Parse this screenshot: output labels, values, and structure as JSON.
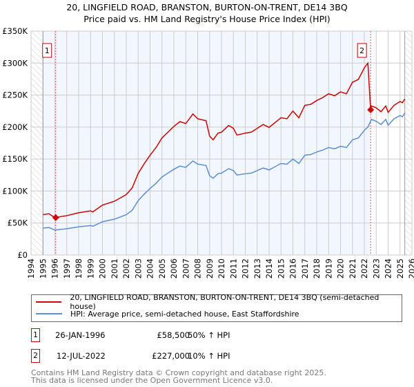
{
  "title": "20, LINGFIELD ROAD, BRANSTON, BURTON-ON-TRENT, DE14 3BQ",
  "subtitle": "Price paid vs. HM Land Registry's House Price Index (HPI)",
  "chart_data": {
    "type": "line",
    "xlim": [
      1994,
      2026
    ],
    "ylim": [
      0,
      350000
    ],
    "x_ticks": [
      "1994",
      "1995",
      "1996",
      "1997",
      "1998",
      "1999",
      "2000",
      "2001",
      "2002",
      "2003",
      "2004",
      "2005",
      "2006",
      "2007",
      "2008",
      "2009",
      "2010",
      "2011",
      "2012",
      "2013",
      "2014",
      "2015",
      "2016",
      "2017",
      "2018",
      "2019",
      "2020",
      "2021",
      "2022",
      "2023",
      "2024",
      "2025",
      "2026"
    ],
    "y_ticks": [
      {
        "v": 0,
        "label": "£0"
      },
      {
        "v": 50000,
        "label": "£50K"
      },
      {
        "v": 100000,
        "label": "£100K"
      },
      {
        "v": 150000,
        "label": "£150K"
      },
      {
        "v": 200000,
        "label": "£200K"
      },
      {
        "v": 250000,
        "label": "£250K"
      },
      {
        "v": 300000,
        "label": "£300K"
      },
      {
        "v": 350000,
        "label": "£350K"
      }
    ],
    "grid": true,
    "shaded_range": [
      1995,
      2022.53
    ],
    "hatched_ranges": [
      [
        1994,
        1995
      ],
      [
        2025.4,
        2026
      ]
    ],
    "series": [
      {
        "name": "20, LINGFIELD ROAD, BRANSTON, BURTON-ON-TRENT, DE14 3BQ (semi-detached house)",
        "color": "#cc0000",
        "x": [
          1995,
          1995.5,
          1996,
          1997,
          1998,
          1999,
          1999.2,
          2000,
          2001,
          2002,
          2002.5,
          2003,
          2003.5,
          2004,
          2004.5,
          2005,
          2005.5,
          2006,
          2006.5,
          2007,
          2007.6,
          2008,
          2008.7,
          2009,
          2009.3,
          2009.7,
          2010,
          2010.6,
          2011,
          2011.3,
          2012,
          2012.5,
          2013,
          2013.5,
          2014,
          2014.5,
          2015,
          2015.5,
          2016,
          2016.5,
          2017,
          2017.5,
          2018,
          2018.5,
          2019,
          2019.5,
          2020,
          2020.5,
          2021,
          2021.5,
          2022,
          2022.3,
          2022.53,
          2022.6,
          2023,
          2023.4,
          2023.8,
          2024,
          2024.5,
          2025,
          2025.2,
          2025.4
        ],
        "y": [
          63000,
          64500,
          58500,
          61500,
          66000,
          69000,
          67500,
          78000,
          84000,
          94500,
          105000,
          127500,
          142500,
          156000,
          168000,
          183000,
          192000,
          201000,
          208500,
          205500,
          220500,
          213000,
          210000,
          186000,
          180000,
          190500,
          192000,
          202500,
          198000,
          187500,
          190500,
          192000,
          198000,
          204000,
          199500,
          207000,
          214500,
          213000,
          225000,
          214500,
          234000,
          235500,
          241500,
          246000,
          252000,
          249000,
          255000,
          252000,
          270000,
          274500,
          292500,
          300000,
          227000,
          233000,
          230000,
          224000,
          233000,
          223000,
          234000,
          240000,
          238000,
          244000
        ]
      },
      {
        "name": "HPI: Average price, semi-detached house, East Staffordshire",
        "color": "#5b8fd0",
        "x": [
          1995,
          1995.5,
          1996,
          1997,
          1998,
          1999,
          1999.2,
          2000,
          2001,
          2002,
          2002.5,
          2003,
          2003.5,
          2004,
          2004.5,
          2005,
          2005.5,
          2006,
          2006.5,
          2007,
          2007.6,
          2008,
          2008.7,
          2009,
          2009.3,
          2009.7,
          2010,
          2010.6,
          2011,
          2011.3,
          2012,
          2012.5,
          2013,
          2013.5,
          2014,
          2014.5,
          2015,
          2015.5,
          2016,
          2016.5,
          2017,
          2017.5,
          2018,
          2018.5,
          2019,
          2019.5,
          2020,
          2020.5,
          2021,
          2021.5,
          2022,
          2022.3,
          2022.6,
          2023,
          2023.4,
          2023.8,
          2024,
          2024.5,
          2025,
          2025.2,
          2025.4
        ],
        "y": [
          42000,
          43000,
          39000,
          41000,
          44000,
          46000,
          45000,
          52000,
          56000,
          63000,
          70000,
          85000,
          95000,
          104000,
          112000,
          122000,
          128000,
          134000,
          139000,
          137000,
          147000,
          142000,
          140000,
          124000,
          120000,
          127000,
          128000,
          135000,
          132000,
          125000,
          127000,
          128000,
          132000,
          136000,
          133000,
          138000,
          143000,
          142000,
          150000,
          143000,
          156000,
          157000,
          161000,
          164000,
          168000,
          166000,
          170000,
          168000,
          180000,
          183000,
          195000,
          200000,
          212000,
          209000,
          204000,
          212000,
          203000,
          213000,
          218000,
          216000,
          222000
        ]
      }
    ],
    "sales": [
      {
        "id": "1",
        "date": "26-JAN-1996",
        "x": 1996.07,
        "price": 58500,
        "price_label": "£58,500",
        "hpi": "50% ↑ HPI"
      },
      {
        "id": "2",
        "date": "12-JUL-2022",
        "x": 2022.53,
        "price": 227000,
        "price_label": "£227,000",
        "hpi": "10% ↑ HPI"
      }
    ]
  },
  "footer": {
    "line1": "Contains HM Land Registry data © Crown copyright and database right 2025.",
    "line2": "This data is licensed under the Open Government Licence v3.0."
  }
}
